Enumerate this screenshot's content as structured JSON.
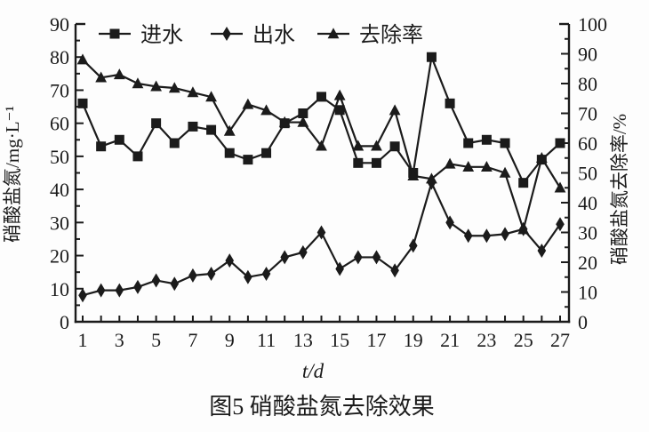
{
  "figure": {
    "caption": "图5 硝酸盐氮去除效果",
    "ink": "#1b1b1b",
    "background": "#fdfdfd"
  },
  "chart_data": {
    "type": "line",
    "grid": false,
    "legend_position": "top-inside",
    "xlabel": "t/d",
    "x_axis": {
      "range": [
        1,
        27
      ],
      "tick_every": 1,
      "tick_labels": [
        1,
        3,
        5,
        7,
        9,
        11,
        13,
        15,
        17,
        19,
        21,
        23,
        25,
        27
      ]
    },
    "left_axis": {
      "label": "硝酸盐氮/mg·L⁻¹",
      "range": [
        0,
        90
      ],
      "major_ticks": [
        0,
        10,
        20,
        30,
        40,
        50,
        60,
        70,
        80,
        90
      ],
      "minor_step": 5
    },
    "right_axis": {
      "label": "硝酸盐氮去除率/%",
      "range": [
        0,
        100
      ],
      "major_ticks": [
        0,
        10,
        20,
        30,
        40,
        50,
        60,
        70,
        80,
        90,
        100
      ],
      "minor_step": 5
    },
    "x": [
      1,
      2,
      3,
      4,
      5,
      6,
      7,
      8,
      9,
      10,
      11,
      12,
      13,
      14,
      15,
      16,
      17,
      18,
      19,
      20,
      21,
      22,
      23,
      24,
      25,
      26,
      27
    ],
    "series": [
      {
        "id": "influent",
        "name": "进水",
        "marker": "square",
        "axis": "left",
        "values": [
          66,
          53,
          55,
          50,
          60,
          54,
          59,
          58,
          51,
          49,
          51,
          60,
          63,
          68,
          64,
          48,
          48,
          53,
          45,
          80,
          66,
          54,
          55,
          54,
          42,
          49,
          54
        ]
      },
      {
        "id": "effluent",
        "name": "出水",
        "marker": "diamond",
        "axis": "left",
        "values": [
          8,
          9.5,
          9.5,
          10.5,
          12.5,
          11.5,
          14,
          14.5,
          18.5,
          13.5,
          14.5,
          19.5,
          21,
          27,
          16,
          19.5,
          19.5,
          15.5,
          23,
          42,
          30,
          26,
          26,
          26.5,
          28,
          21.5,
          29.5
        ]
      },
      {
        "id": "removal-rate",
        "name": "去除率",
        "marker": "triangle",
        "axis": "right",
        "values": [
          88,
          82,
          83,
          80,
          79,
          78.5,
          77,
          75.5,
          64,
          73,
          71,
          67,
          67,
          59,
          76,
          59,
          59,
          71,
          49,
          48,
          53,
          52,
          52,
          50,
          31,
          55,
          45
        ]
      }
    ]
  }
}
